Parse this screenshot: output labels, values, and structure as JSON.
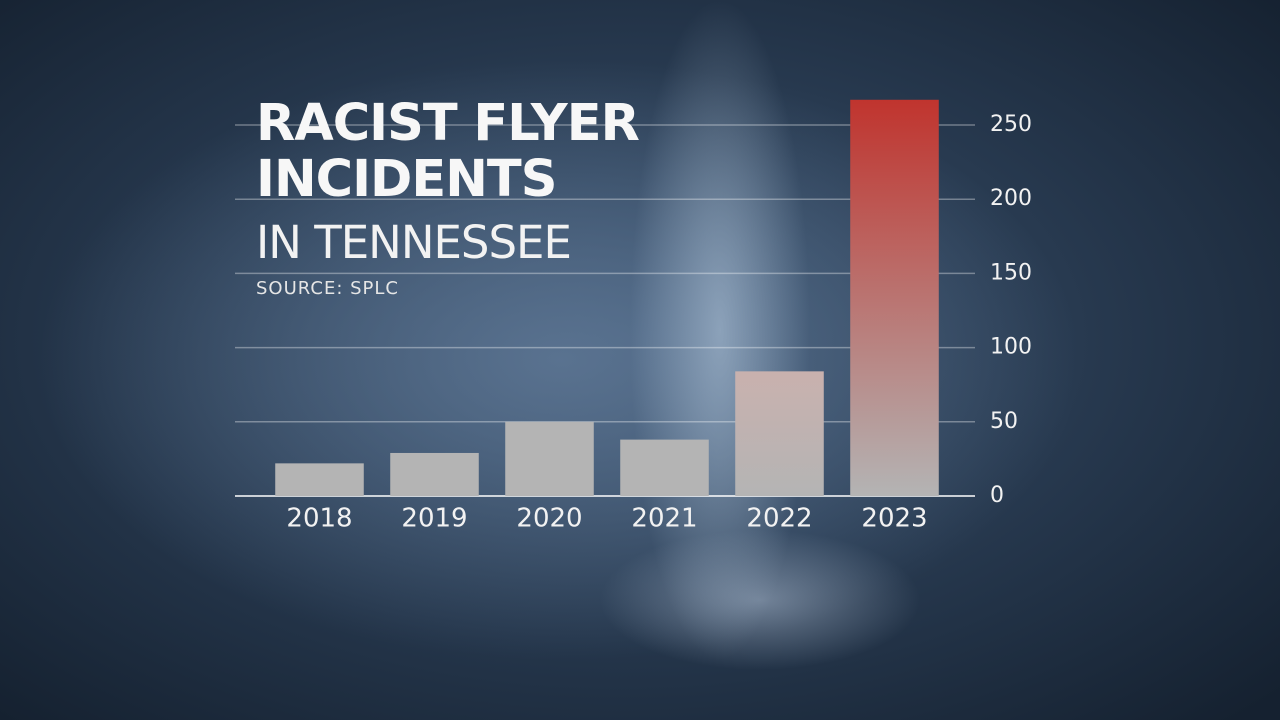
{
  "chart_data": {
    "type": "bar",
    "title": "RACIST FLYER INCIDENTS",
    "subtitle": "IN TENNESSEE",
    "source": "SOURCE: SPLC",
    "categories": [
      "2018",
      "2019",
      "2020",
      "2021",
      "2022",
      "2023"
    ],
    "values": [
      22,
      29,
      50,
      38,
      84,
      267
    ],
    "color": "#b4b4b4",
    "colors": [
      "#b4b4b4",
      "#b4b4b4",
      "#b4b4b4",
      "#b4b4b4",
      "#c9b1ae",
      "#c0342e"
    ],
    "ylim": [
      0,
      250
    ],
    "yticks": [
      0,
      50,
      100,
      150,
      200,
      250
    ],
    "grid": true,
    "y_axis_side": "right"
  }
}
